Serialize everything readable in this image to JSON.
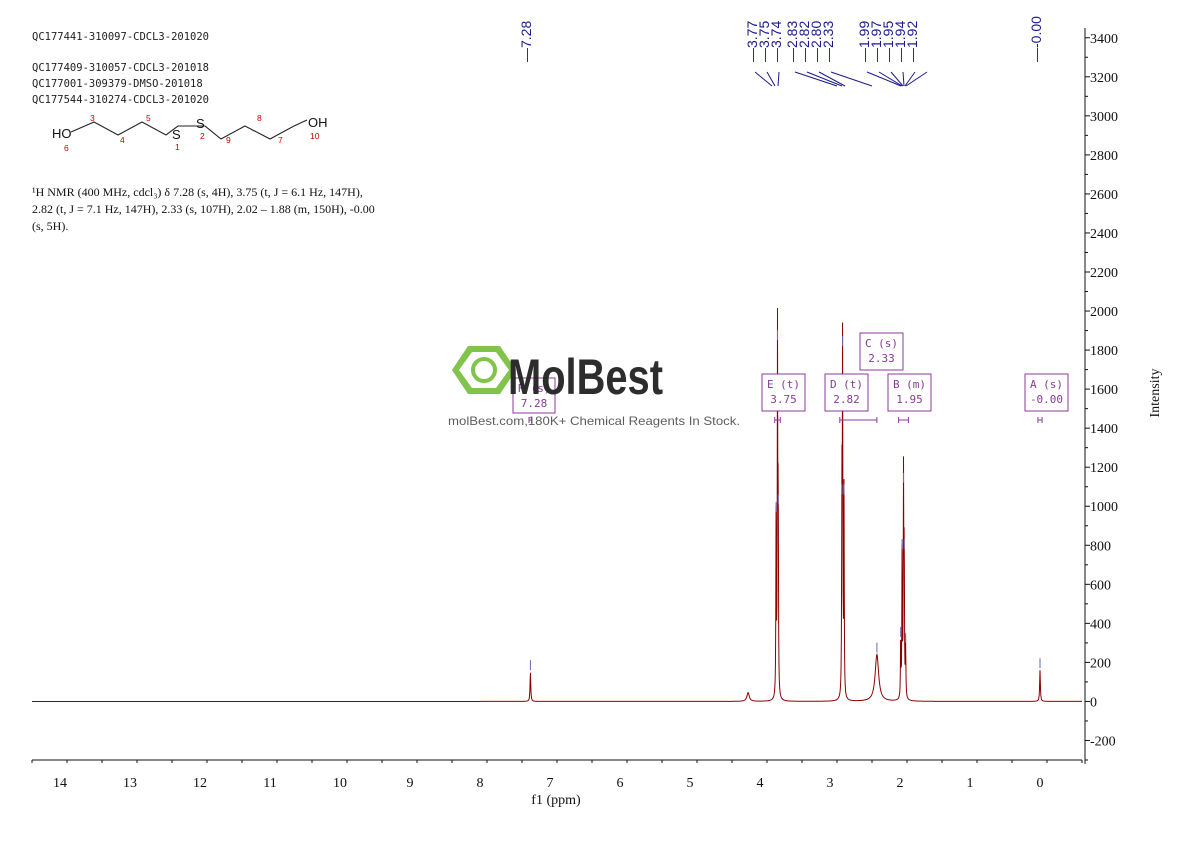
{
  "header_ids": [
    "QC177441-310097-CDCL3-201020",
    "QC177409-310057-CDCL3-201018",
    "QC177001-309379-DMSO-201018",
    "QC177544-310274-CDCL3-201020"
  ],
  "structure": {
    "left_end": "HO",
    "right_end": "OH",
    "sulfur_1": "S",
    "sulfur_2": "S",
    "atom_numbers": [
      "6",
      "3",
      "4",
      "5",
      "1",
      "2",
      "9",
      "8",
      "7",
      "10"
    ]
  },
  "nmr_description": {
    "line1": "¹H NMR (400 MHz, cdcl₃) δ 7.28 (s, 4H), 3.75 (t, J = 6.1 Hz, 147H),",
    "line2": "2.82 (t, J = 7.1 Hz, 147H), 2.33 (s, 107H), 2.02 – 1.88 (m, 150H), -0.00",
    "line3": "(s, 5H)."
  },
  "peak_labels": [
    "7.28",
    "3.77",
    "3.75",
    "3.74",
    "2.83",
    "2.82",
    "2.80",
    "2.33",
    "1.99",
    "1.97",
    "1.95",
    "1.94",
    "1.92",
    "-0.00"
  ],
  "multiplets": [
    {
      "letter_mult": "F (s)",
      "shift": "7.28"
    },
    {
      "letter_mult": "E (t)",
      "shift": "3.75"
    },
    {
      "letter_mult": "D (t)",
      "shift": "2.82"
    },
    {
      "letter_mult": "C (s)",
      "shift": "2.33"
    },
    {
      "letter_mult": "B (m)",
      "shift": "1.95"
    },
    {
      "letter_mult": "A (s)",
      "shift": "-0.00"
    }
  ],
  "watermark": {
    "brand": "MolBest",
    "tagline": "molBest.com,180K+ Chemical Reagents In Stock."
  },
  "colors": {
    "spectrum": "#8b0000",
    "peak_label": "#1a1a8c",
    "multiplet_box": "#8b3a9b",
    "watermark_green": "#7ac142",
    "watermark_dark": "#222222",
    "atom_number": "#cc0000"
  },
  "chart_data": {
    "type": "line",
    "xlabel": "f1 (ppm)",
    "ylabel": "Intensity",
    "xlim": [
      14.4,
      -0.6
    ],
    "ylim": [
      -300,
      3450
    ],
    "x_ticks": [
      14,
      13,
      12,
      11,
      10,
      9,
      8,
      7,
      6,
      5,
      4,
      3,
      2,
      1,
      0
    ],
    "y_ticks": [
      -200,
      0,
      200,
      400,
      600,
      800,
      1000,
      1200,
      1400,
      1600,
      1800,
      2000,
      2200,
      2400,
      2600,
      2800,
      3000,
      3200,
      3400
    ],
    "peaks": [
      {
        "ppm": 7.28,
        "height": 150,
        "width": 0.006
      },
      {
        "ppm": 4.17,
        "height": 45,
        "width": 0.02
      },
      {
        "ppm": 3.77,
        "height": 960,
        "width": 0.004
      },
      {
        "ppm": 3.75,
        "height": 1840,
        "width": 0.004
      },
      {
        "ppm": 3.74,
        "height": 1000,
        "width": 0.004
      },
      {
        "ppm": 2.83,
        "height": 1050,
        "width": 0.004
      },
      {
        "ppm": 2.82,
        "height": 1810,
        "width": 0.004
      },
      {
        "ppm": 2.8,
        "height": 1050,
        "width": 0.004
      },
      {
        "ppm": 2.33,
        "height": 240,
        "width": 0.03
      },
      {
        "ppm": 1.99,
        "height": 320,
        "width": 0.004
      },
      {
        "ppm": 1.97,
        "height": 770,
        "width": 0.004
      },
      {
        "ppm": 1.95,
        "height": 1110,
        "width": 0.004
      },
      {
        "ppm": 1.94,
        "height": 770,
        "width": 0.004
      },
      {
        "ppm": 1.92,
        "height": 290,
        "width": 0.004
      },
      {
        "ppm": 0.0,
        "height": 160,
        "width": 0.006
      }
    ]
  }
}
